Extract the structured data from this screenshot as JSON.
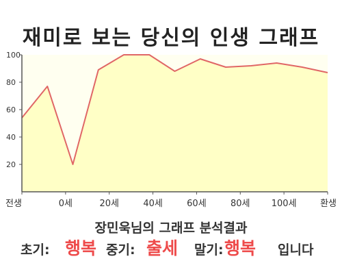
{
  "page": {
    "title": "재미로 보는 당신의 인생 그래프",
    "summary": "장민욱님의 그래프 분석결과",
    "results": [
      {
        "label": "초기:",
        "value": "행복"
      },
      {
        "label": "중기:",
        "value": "출세"
      },
      {
        "label": "말기:",
        "value": "행복"
      }
    ],
    "closing": "입니다",
    "colors": {
      "line": "#e06666",
      "fill": "#ffffc6",
      "accent": "#ee4b4b",
      "plot_bg": "#fffff0"
    }
  },
  "chart_data": {
    "type": "area",
    "title": "재미로 보는 당신의 인생 그래프",
    "xlabel": "",
    "ylabel": "",
    "x_tick_labels": [
      "전생",
      "0세",
      "20세",
      "40세",
      "60세",
      "80세",
      "100세",
      "환생"
    ],
    "y_ticks": [
      20,
      40,
      60,
      80,
      100
    ],
    "ylim": [
      0,
      100
    ],
    "grid": false,
    "series": [
      {
        "values": [
          54,
          77,
          20,
          89,
          100,
          100,
          88,
          97,
          91,
          92,
          94,
          91,
          87
        ]
      }
    ]
  }
}
